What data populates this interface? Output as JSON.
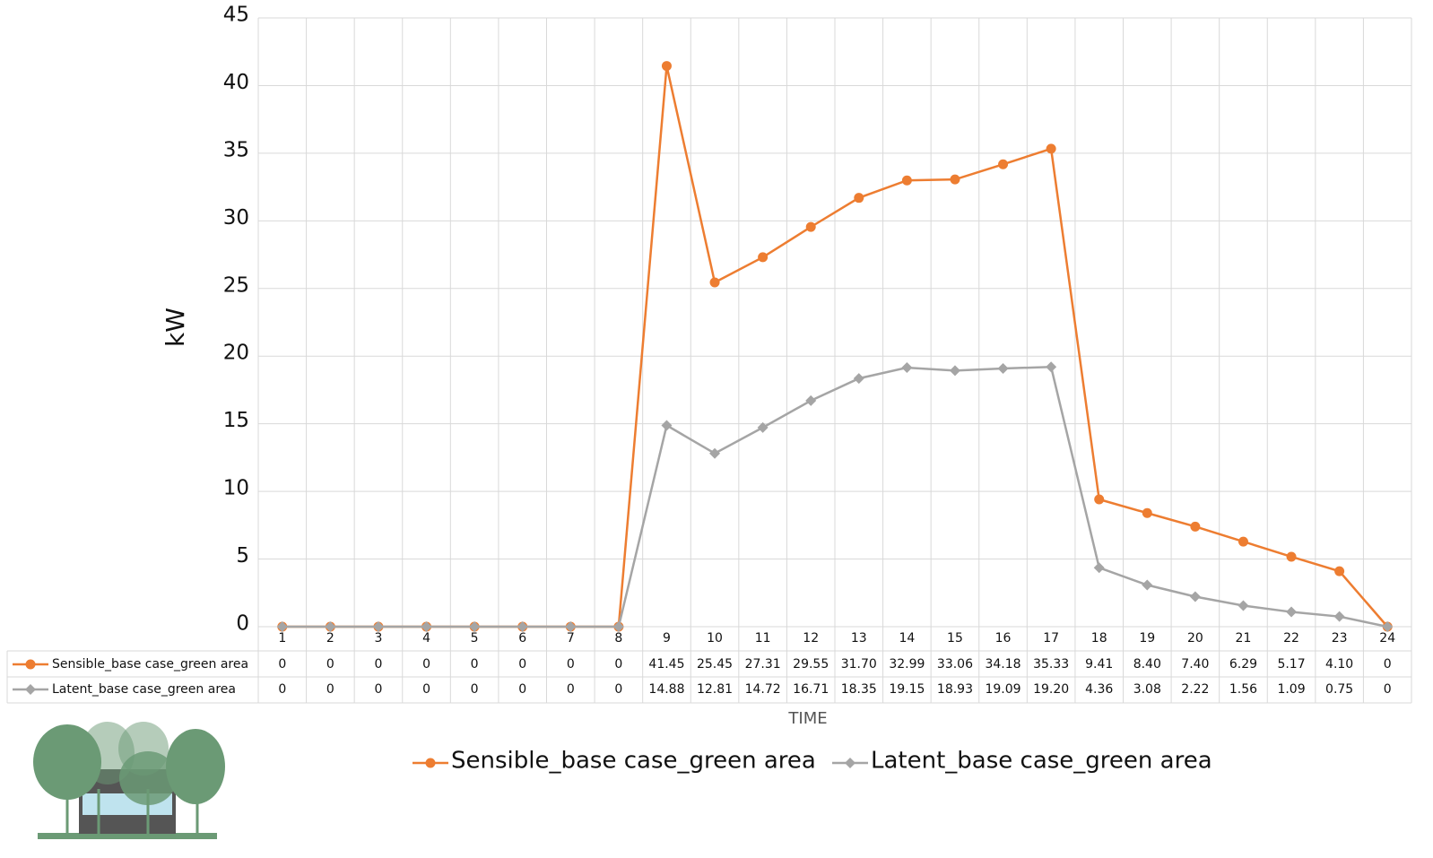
{
  "chart_data": {
    "type": "line",
    "x_label": "TIME",
    "y_label": "kW",
    "categories": [
      "1",
      "2",
      "3",
      "4",
      "5",
      "6",
      "7",
      "8",
      "9",
      "10",
      "11",
      "12",
      "13",
      "14",
      "15",
      "16",
      "17",
      "18",
      "19",
      "20",
      "21",
      "22",
      "23",
      "24"
    ],
    "series": [
      {
        "name": "Sensible_base case_green area",
        "color": "#ed7d31",
        "marker": "circle",
        "values": [
          0,
          0,
          0,
          0,
          0,
          0,
          0,
          0,
          41.45,
          25.45,
          27.31,
          29.55,
          31.7,
          32.99,
          33.06,
          34.18,
          35.33,
          9.41,
          8.4,
          7.4,
          6.29,
          5.17,
          4.1,
          0
        ],
        "value_labels": [
          "0",
          "0",
          "0",
          "0",
          "0",
          "0",
          "0",
          "0",
          "41.45",
          "25.45",
          "27.31",
          "29.55",
          "31.70",
          "32.99",
          "33.06",
          "34.18",
          "35.33",
          "9.41",
          "8.40",
          "7.40",
          "6.29",
          "5.17",
          "4.10",
          "0"
        ]
      },
      {
        "name": "Latent_base case_green area",
        "color": "#a5a5a5",
        "marker": "diamond",
        "values": [
          0,
          0,
          0,
          0,
          0,
          0,
          0,
          0,
          14.88,
          12.81,
          14.72,
          16.71,
          18.35,
          19.15,
          18.93,
          19.09,
          19.2,
          4.36,
          3.08,
          2.22,
          1.56,
          1.09,
          0.75,
          0
        ],
        "value_labels": [
          "0",
          "0",
          "0",
          "0",
          "0",
          "0",
          "0",
          "0",
          "14.88",
          "12.81",
          "14.72",
          "16.71",
          "18.35",
          "19.15",
          "18.93",
          "19.09",
          "19.20",
          "4.36",
          "3.08",
          "2.22",
          "1.56",
          "1.09",
          "0.75",
          "0"
        ]
      }
    ],
    "ylim": [
      0,
      45
    ],
    "yticks": [
      0,
      5,
      10,
      15,
      20,
      25,
      30,
      35,
      40,
      45
    ],
    "grid": true,
    "legend": "bottom"
  }
}
